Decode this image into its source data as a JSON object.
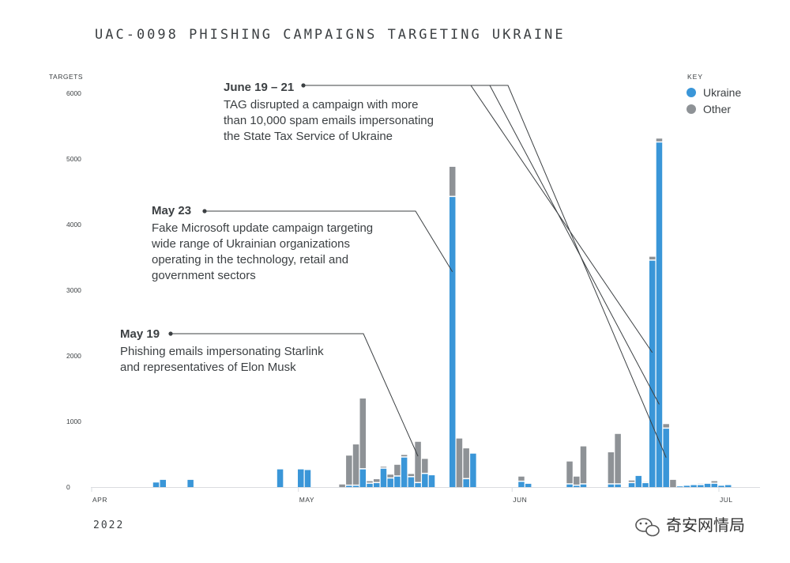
{
  "chart_data": {
    "type": "bar",
    "stacked": true,
    "title": "UAC-0098 PHISHING CAMPAIGNS TARGETING UKRAINE",
    "ylabel": "TARGETS",
    "year_label": "2022",
    "ylim": [
      0,
      6000
    ],
    "yticks": [
      "0",
      "1000",
      "2000",
      "3000",
      "4000",
      "5000",
      "6000"
    ],
    "xticks": [
      "APR",
      "MAY",
      "JUN",
      "JUL"
    ],
    "legend": {
      "title": "KEY",
      "placement": "top-right",
      "entries": [
        {
          "name": "Ukraine",
          "color": "#3a96d8"
        },
        {
          "name": "Other",
          "color": "#8e9296"
        }
      ]
    },
    "series": [
      {
        "name": "Ukraine",
        "color": "#3a96d8"
      },
      {
        "name": "Other",
        "color": "#8e9296"
      }
    ],
    "x_domain": [
      "2022-04-01",
      "2022-07-01"
    ],
    "bars": [
      {
        "date": "2022-04-10",
        "ukraine": 70,
        "other": 0
      },
      {
        "date": "2022-04-11",
        "ukraine": 110,
        "other": 0
      },
      {
        "date": "2022-04-15",
        "ukraine": 110,
        "other": 0
      },
      {
        "date": "2022-04-28",
        "ukraine": 270,
        "other": 0
      },
      {
        "date": "2022-05-01",
        "ukraine": 270,
        "other": 0
      },
      {
        "date": "2022-05-02",
        "ukraine": 260,
        "other": 0
      },
      {
        "date": "2022-05-07",
        "ukraine": 0,
        "other": 40
      },
      {
        "date": "2022-05-08",
        "ukraine": 20,
        "other": 460
      },
      {
        "date": "2022-05-09",
        "ukraine": 20,
        "other": 630
      },
      {
        "date": "2022-05-10",
        "ukraine": 270,
        "other": 1080
      },
      {
        "date": "2022-05-11",
        "ukraine": 50,
        "other": 40
      },
      {
        "date": "2022-05-12",
        "ukraine": 60,
        "other": 60
      },
      {
        "date": "2022-05-13",
        "ukraine": 280,
        "other": 30
      },
      {
        "date": "2022-05-14",
        "ukraine": 130,
        "other": 60
      },
      {
        "date": "2022-05-15",
        "ukraine": 160,
        "other": 180
      },
      {
        "date": "2022-05-16",
        "ukraine": 450,
        "other": 40
      },
      {
        "date": "2022-05-17",
        "ukraine": 150,
        "other": 50
      },
      {
        "date": "2022-05-18",
        "ukraine": 60,
        "other": 630
      },
      {
        "date": "2022-05-19",
        "ukraine": 200,
        "other": 230
      },
      {
        "date": "2022-05-20",
        "ukraine": 180,
        "other": 0
      },
      {
        "date": "2022-05-23",
        "ukraine": 4420,
        "other": 460
      },
      {
        "date": "2022-05-24",
        "ukraine": 0,
        "other": 740
      },
      {
        "date": "2022-05-25",
        "ukraine": 120,
        "other": 470
      },
      {
        "date": "2022-05-26",
        "ukraine": 510,
        "other": 0
      },
      {
        "date": "2022-06-02",
        "ukraine": 80,
        "other": 80
      },
      {
        "date": "2022-06-03",
        "ukraine": 50,
        "other": 0
      },
      {
        "date": "2022-06-09",
        "ukraine": 40,
        "other": 350
      },
      {
        "date": "2022-06-10",
        "ukraine": 20,
        "other": 140
      },
      {
        "date": "2022-06-11",
        "ukraine": 40,
        "other": 580
      },
      {
        "date": "2022-06-15",
        "ukraine": 40,
        "other": 490
      },
      {
        "date": "2022-06-16",
        "ukraine": 40,
        "other": 770
      },
      {
        "date": "2022-06-18",
        "ukraine": 60,
        "other": 40
      },
      {
        "date": "2022-06-19",
        "ukraine": 170,
        "other": 0
      },
      {
        "date": "2022-06-20",
        "ukraine": 60,
        "other": 20
      },
      {
        "date": "2022-06-21",
        "ukraine": 3450,
        "other": 60
      },
      {
        "date": "2022-06-22",
        "ukraine": 5250,
        "other": 60
      },
      {
        "date": "2022-06-23",
        "ukraine": 890,
        "other": 70
      },
      {
        "date": "2022-06-24",
        "ukraine": 0,
        "other": 110
      },
      {
        "date": "2022-06-25",
        "ukraine": 10,
        "other": 0
      },
      {
        "date": "2022-06-26",
        "ukraine": 20,
        "other": 10
      },
      {
        "date": "2022-06-27",
        "ukraine": 30,
        "other": 0
      },
      {
        "date": "2022-06-28",
        "ukraine": 30,
        "other": 20
      },
      {
        "date": "2022-06-29",
        "ukraine": 50,
        "other": 10
      },
      {
        "date": "2022-06-30",
        "ukraine": 50,
        "other": 40
      },
      {
        "date": "2022-07-01",
        "ukraine": 20,
        "other": 0
      },
      {
        "date": "2022-07-02",
        "ukraine": 30,
        "other": 0
      }
    ],
    "annotations": [
      {
        "id": "june",
        "title": "June 19 – 21",
        "lines": [
          "TAG disrupted a campaign with more",
          "than 10,000 spam emails impersonating",
          "the State Tax Service of Ukraine"
        ],
        "targets": [
          {
            "date": "2022-06-21",
            "value": 2050
          },
          {
            "date": "2022-06-22",
            "value": 1260
          },
          {
            "date": "2022-06-23",
            "value": 450
          }
        ]
      },
      {
        "id": "may23",
        "title": "May 23",
        "lines": [
          "Fake Microsoft update campaign targeting",
          "wide range of Ukrainian organizations",
          "operating in the technology, retail and",
          "government sectors"
        ],
        "targets": [
          {
            "date": "2022-05-23",
            "value": 3280
          }
        ]
      },
      {
        "id": "may19",
        "title": "May 19",
        "lines": [
          "Phishing emails impersonating Starlink",
          "and representatives of Elon Musk"
        ],
        "targets": [
          {
            "date": "2022-05-18",
            "value": 470
          }
        ]
      }
    ]
  },
  "watermark": {
    "icon": "wechat-icon",
    "text": "奇安网情局"
  }
}
